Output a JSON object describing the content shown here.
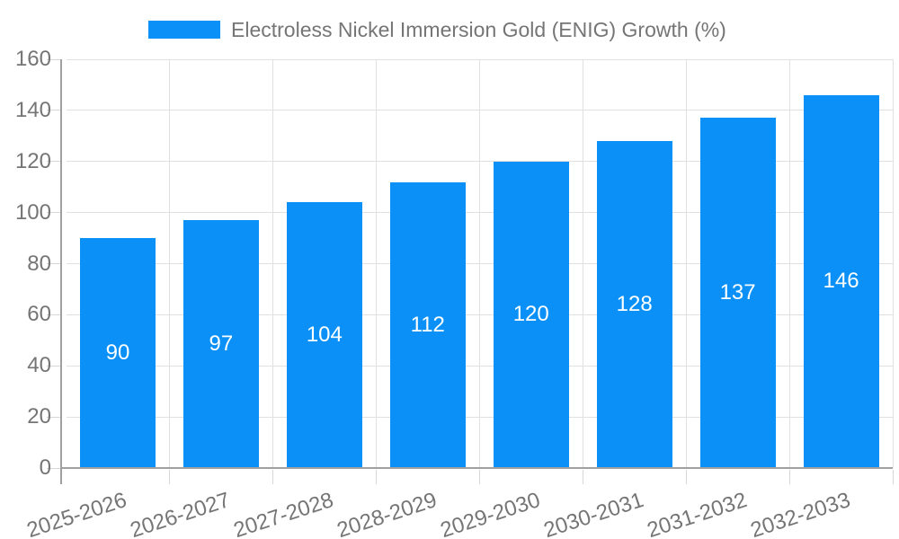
{
  "chart_data": {
    "type": "bar",
    "title": "Electroless Nickel Immersion Gold (ENIG) Growth (%)",
    "categories": [
      "2025-2026",
      "2026-2027",
      "2027-2028",
      "2028-2029",
      "2029-2030",
      "2030-2031",
      "2031-2032",
      "2032-2033"
    ],
    "values": [
      90,
      97,
      104,
      112,
      120,
      128,
      137,
      146
    ],
    "xlabel": "",
    "ylabel": "",
    "ylim": [
      0,
      160
    ],
    "ytick_step": 20,
    "ytick_labels": [
      "0",
      "20",
      "40",
      "60",
      "80",
      "100",
      "120",
      "140",
      "160"
    ],
    "legend_position": "top",
    "grid": "on",
    "bar_labels_inside": true,
    "colors": {
      "bar": "#0a90f6",
      "bar_label": "#ffffff",
      "axis_text": "#757575",
      "title_text": "#757575",
      "gridline": "#e0e0e0",
      "axis_line": "#a0a0a0",
      "tick_mark": "#d6d6d6",
      "background": "#ffffff"
    }
  }
}
